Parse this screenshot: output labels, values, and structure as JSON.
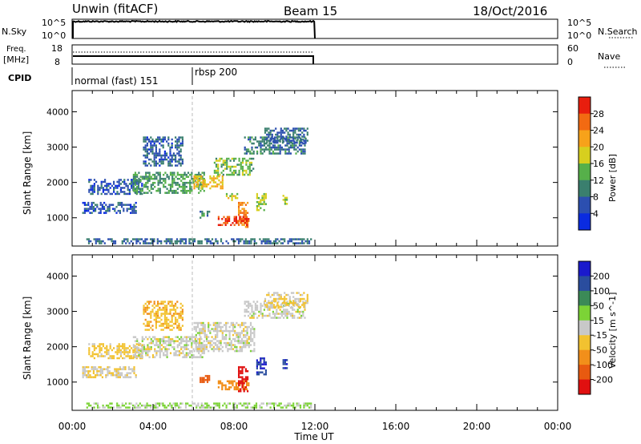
{
  "header": {
    "station": "Unwin (fitACF)",
    "beam": "Beam 15",
    "date": "18/Oct/2016"
  },
  "nsky_panel": {
    "label": "N.Sky",
    "left_ticks": [
      "10^5",
      "10^0"
    ],
    "right_ticks": [
      "10^5",
      "10^0"
    ],
    "right_label": "N.Search"
  },
  "freq_panel": {
    "label_line1": "Freq.",
    "label_line2": "[MHz]",
    "left_ticks": [
      "18",
      "8"
    ],
    "right_ticks": [
      "60",
      "0"
    ],
    "right_label": "Nave"
  },
  "cpid": {
    "label": "CPID",
    "modes": [
      {
        "name": "normal (fast) 151",
        "start_hour": 0
      },
      {
        "name": "rbsp 200",
        "start_hour": 6
      }
    ]
  },
  "chart_data": [
    {
      "type": "heatmap",
      "title": "",
      "xlabel": "",
      "ylabel": "Slant Range [km]",
      "xlim": [
        0,
        24
      ],
      "ylim": [
        200,
        4600
      ],
      "yticks": [
        1000,
        2000,
        3000,
        4000
      ],
      "colorbar": {
        "label": "Power [dB]",
        "ticks": [
          "4",
          "8",
          "12",
          "16",
          "20",
          "24",
          "28"
        ],
        "range": [
          0,
          32
        ],
        "colors": [
          "#0a2be0",
          "#2c4fb0",
          "#3a7f6e",
          "#56b04a",
          "#d7cf1e",
          "#f7a21a",
          "#f26a12",
          "#e81e0e"
        ]
      },
      "scatter_regions": [
        {
          "hours": [
            0.7,
            11.8
          ],
          "range_km": [
            300,
            420
          ],
          "value": 8
        },
        {
          "hours": [
            0.8,
            3.5
          ],
          "range_km": [
            1650,
            2100
          ],
          "value": 6
        },
        {
          "hours": [
            0.5,
            3.2
          ],
          "range_km": [
            1150,
            1450
          ],
          "value": 6
        },
        {
          "hours": [
            3.0,
            6.5
          ],
          "range_km": [
            1700,
            2300
          ],
          "value": 12
        },
        {
          "hours": [
            6.0,
            7.4
          ],
          "range_km": [
            1850,
            2200
          ],
          "value": 20
        },
        {
          "hours": [
            7.0,
            9.0
          ],
          "range_km": [
            2200,
            2700
          ],
          "value": 14
        },
        {
          "hours": [
            8.5,
            11.5
          ],
          "range_km": [
            2800,
            3300
          ],
          "value": 9
        },
        {
          "hours": [
            6.3,
            6.8
          ],
          "range_km": [
            1000,
            1200
          ],
          "value": 10
        },
        {
          "hours": [
            7.6,
            8.2
          ],
          "range_km": [
            1500,
            1700
          ],
          "value": 18
        },
        {
          "hours": [
            8.2,
            8.7
          ],
          "range_km": [
            750,
            1450
          ],
          "value": 24
        },
        {
          "hours": [
            7.2,
            8.7
          ],
          "range_km": [
            800,
            1050
          ],
          "value": 28
        },
        {
          "hours": [
            9.1,
            9.6
          ],
          "range_km": [
            1200,
            1700
          ],
          "value": 16
        },
        {
          "hours": [
            10.4,
            10.6
          ],
          "range_km": [
            1400,
            1650
          ],
          "value": 16
        },
        {
          "hours": [
            3.5,
            5.5
          ],
          "range_km": [
            2500,
            3300
          ],
          "value": 7
        },
        {
          "hours": [
            9.5,
            11.6
          ],
          "range_km": [
            3100,
            3550
          ],
          "value": 8
        }
      ]
    },
    {
      "type": "heatmap",
      "title": "",
      "xlabel": "Time UT",
      "ylabel": "Slant Range [km]",
      "xlim": [
        0,
        24
      ],
      "ylim": [
        200,
        4600
      ],
      "yticks": [
        1000,
        2000,
        3000,
        4000
      ],
      "xticks": [
        "00:00",
        "04:00",
        "08:00",
        "12:00",
        "16:00",
        "20:00",
        "00:00"
      ],
      "colorbar": {
        "label": "Velocity [m s^-1]",
        "ticks": [
          "200",
          "100",
          "50",
          "15",
          "-15",
          "-50",
          "-100",
          "-200"
        ],
        "range": [
          -250,
          250
        ],
        "colors": [
          "#1a1acc",
          "#2a4d9e",
          "#3b8a57",
          "#7cd336",
          "#c8c8c8",
          "#f2c230",
          "#f28f1a",
          "#e85a10",
          "#e01010"
        ]
      },
      "scatter_regions": [
        {
          "hours": [
            0.7,
            11.8
          ],
          "range_km": [
            300,
            420
          ],
          "value": 20
        },
        {
          "hours": [
            0.8,
            3.5
          ],
          "range_km": [
            1650,
            2100
          ],
          "value": -30
        },
        {
          "hours": [
            0.5,
            3.2
          ],
          "range_km": [
            1150,
            1450
          ],
          "value": -10
        },
        {
          "hours": [
            3.0,
            6.5
          ],
          "range_km": [
            1700,
            2300
          ],
          "value": 0
        },
        {
          "hours": [
            6.0,
            9.0
          ],
          "range_km": [
            1850,
            2700
          ],
          "value": 0
        },
        {
          "hours": [
            8.5,
            11.5
          ],
          "range_km": [
            2800,
            3300
          ],
          "value": 0
        },
        {
          "hours": [
            3.5,
            5.5
          ],
          "range_km": [
            2500,
            3300
          ],
          "value": -40
        },
        {
          "hours": [
            6.3,
            6.8
          ],
          "range_km": [
            1000,
            1200
          ],
          "value": -150
        },
        {
          "hours": [
            7.2,
            8.7
          ],
          "range_km": [
            800,
            1050
          ],
          "value": -80
        },
        {
          "hours": [
            8.2,
            8.7
          ],
          "range_km": [
            750,
            1450
          ],
          "value": -220
        },
        {
          "hours": [
            9.1,
            9.6
          ],
          "range_km": [
            1200,
            1700
          ],
          "value": 200
        },
        {
          "hours": [
            10.4,
            10.6
          ],
          "range_km": [
            1400,
            1650
          ],
          "value": 200
        },
        {
          "hours": [
            9.5,
            11.6
          ],
          "range_km": [
            3100,
            3550
          ],
          "value": -20
        }
      ]
    }
  ]
}
